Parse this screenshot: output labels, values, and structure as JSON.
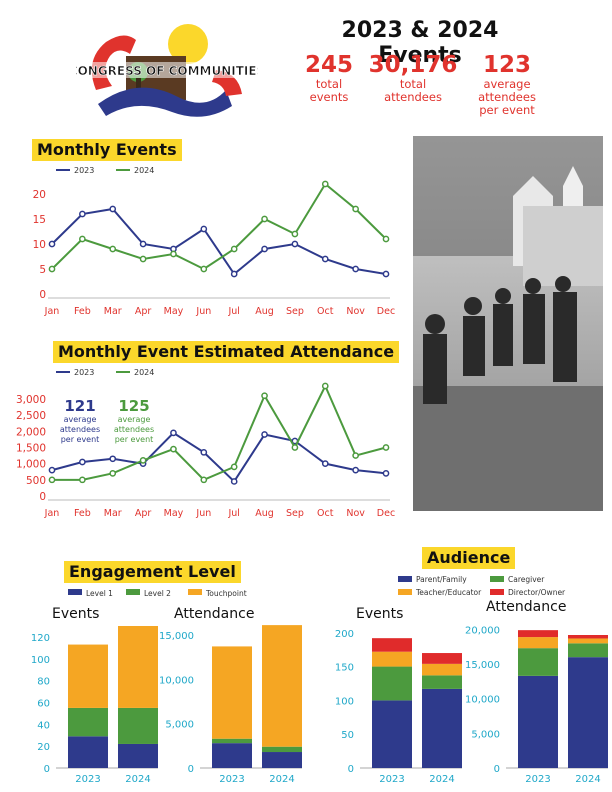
{
  "header": {
    "logo_text": "CONGRESS OF COMMUNITIES",
    "title": "2023 & 2024 Events",
    "stats": [
      {
        "value": "245",
        "label_lines": [
          "total",
          "events"
        ]
      },
      {
        "value": "30,176",
        "label_lines": [
          "total",
          "attendees"
        ]
      },
      {
        "value": "123",
        "label_lines": [
          "average",
          "attendees",
          "per event"
        ]
      }
    ]
  },
  "colors": {
    "series_2023": "#2e3a8c",
    "series_2024": "#4c9a3e",
    "axis_text": "#e0332d",
    "accent_yellow": "#fbd72b",
    "level1": "#2e3a8c",
    "level2": "#4c9a3e",
    "touchpoint": "#f5a623",
    "parent": "#2e3a8c",
    "caregiver": "#4c9a3e",
    "teacher": "#f5a623",
    "director": "#e02b2b",
    "bottom_axis": "#20a8c9"
  },
  "sections": {
    "monthly_events_title": "Monthly Events",
    "attendance_title": "Monthly Event Estimated Attendance",
    "engagement_title": "Engagement Level",
    "audience_title": "Audience",
    "events_sub": "Events",
    "attendance_sub": "Attendance"
  },
  "attendance_avgs": [
    {
      "value": "121",
      "lines": [
        "average",
        "attendees",
        "per event"
      ],
      "series": "2023"
    },
    {
      "value": "125",
      "lines": [
        "average",
        "attendees",
        "per event"
      ],
      "series": "2024"
    }
  ],
  "photo": {
    "icon": "photo-icon"
  },
  "chart_data": [
    {
      "id": "monthly-events",
      "type": "line",
      "title": "Monthly Events",
      "categories": [
        "Jan",
        "Feb",
        "Mar",
        "Apr",
        "May",
        "Jun",
        "Jul",
        "Aug",
        "Sep",
        "Oct",
        "Nov",
        "Dec"
      ],
      "series": [
        {
          "name": "2023",
          "values": [
            10,
            16,
            17,
            10,
            9,
            13,
            4,
            9,
            10,
            7,
            5,
            4
          ]
        },
        {
          "name": "2024",
          "values": [
            5,
            11,
            9,
            7,
            8,
            5,
            9,
            15,
            12,
            22,
            17,
            11
          ]
        }
      ],
      "yticks": [
        "0",
        "5",
        "10",
        "15",
        "20"
      ],
      "ylim": [
        0,
        22
      ],
      "legend": "top-left",
      "grid": false
    },
    {
      "id": "monthly-attendance",
      "type": "line",
      "title": "Monthly Event Estimated Attendance",
      "categories": [
        "Jan",
        "Feb",
        "Mar",
        "Apr",
        "May",
        "Jun",
        "Jul",
        "Aug",
        "Sep",
        "Oct",
        "Nov",
        "Dec"
      ],
      "series": [
        {
          "name": "2023",
          "values": [
            800,
            1050,
            1150,
            1000,
            1950,
            1350,
            450,
            1900,
            1700,
            1000,
            800,
            700
          ]
        },
        {
          "name": "2024",
          "values": [
            500,
            500,
            700,
            1100,
            1450,
            500,
            900,
            3100,
            1500,
            3400,
            1250,
            1500
          ]
        }
      ],
      "yticks": [
        "0",
        "500",
        "1,000",
        "1,500",
        "2,000",
        "2,500",
        "3,000"
      ],
      "ylim": [
        0,
        3400
      ],
      "legend": "top-left",
      "grid": false
    },
    {
      "id": "engagement-events",
      "type": "bar",
      "subtitle": "Events",
      "stacked": true,
      "categories": [
        "2023",
        "2024"
      ],
      "legend_entries": [
        "Level 1",
        "Level 2",
        "Touchpoint"
      ],
      "series": [
        {
          "name": "Level 1",
          "values": [
            29,
            22
          ]
        },
        {
          "name": "Level 2",
          "values": [
            26,
            33
          ]
        },
        {
          "name": "Touchpoint",
          "values": [
            58,
            75
          ]
        }
      ],
      "yticks": [
        "0",
        "20",
        "40",
        "60",
        "80",
        "100",
        "120"
      ],
      "ylim": [
        0,
        130
      ]
    },
    {
      "id": "engagement-attendance",
      "type": "bar",
      "subtitle": "Attendance",
      "stacked": true,
      "categories": [
        "2023",
        "2024"
      ],
      "series": [
        {
          "name": "Level 1",
          "values": [
            2800,
            1800
          ]
        },
        {
          "name": "Level 2",
          "values": [
            500,
            600
          ]
        },
        {
          "name": "Touchpoint",
          "values": [
            10400,
            13700
          ]
        }
      ],
      "yticks": [
        "0",
        "5,000",
        "10,000",
        "15,000"
      ],
      "ylim": [
        0,
        16000
      ]
    },
    {
      "id": "audience-events",
      "type": "bar",
      "subtitle": "Events",
      "stacked": true,
      "categories": [
        "2023",
        "2024"
      ],
      "legend_entries": [
        "Parent/Family",
        "Caregiver",
        "Teacher/Educator",
        "Director/Owner"
      ],
      "series": [
        {
          "name": "Parent/Family",
          "values": [
            100,
            117
          ]
        },
        {
          "name": "Caregiver",
          "values": [
            50,
            20
          ]
        },
        {
          "name": "Teacher/Educator",
          "values": [
            22,
            17
          ]
        },
        {
          "name": "Director/Owner",
          "values": [
            20,
            16
          ]
        }
      ],
      "yticks": [
        "0",
        "50",
        "100",
        "150",
        "200"
      ],
      "ylim": [
        0,
        210
      ]
    },
    {
      "id": "audience-attendance",
      "type": "bar",
      "subtitle": "Attendance",
      "stacked": true,
      "categories": [
        "2023",
        "2024"
      ],
      "series": [
        {
          "name": "Parent/Family",
          "values": [
            13300,
            16000
          ]
        },
        {
          "name": "Caregiver",
          "values": [
            4000,
            2000
          ]
        },
        {
          "name": "Teacher/Educator",
          "values": [
            1600,
            700
          ]
        },
        {
          "name": "Director/Owner",
          "values": [
            1000,
            500
          ]
        }
      ],
      "yticks": [
        "0",
        "5,000",
        "10,000",
        "15,000",
        "20,000"
      ],
      "ylim": [
        0,
        20500
      ]
    }
  ]
}
